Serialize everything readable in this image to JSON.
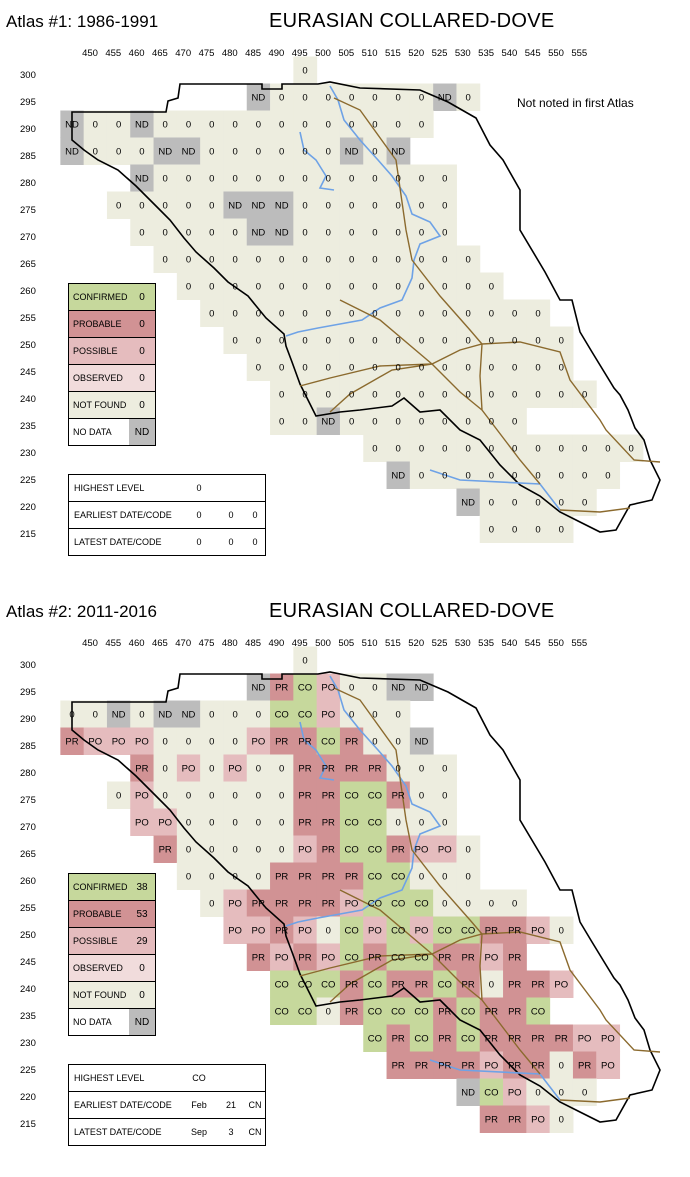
{
  "colors": {
    "CO": "#c6d89c",
    "PR": "#d19294",
    "PO": "#e5bcbe",
    "OB": "#f1dcdc",
    "NF": "#ededdf",
    "ND": "#bcbcbc",
    "outline": "#000000",
    "river": "#6ea2e6",
    "road": "#8b6a2e"
  },
  "x_axis": [
    "450",
    "455",
    "460",
    "465",
    "470",
    "475",
    "480",
    "485",
    "490",
    "495",
    "500",
    "505",
    "510",
    "515",
    "520",
    "525",
    "530",
    "535",
    "540",
    "545",
    "550",
    "555"
  ],
  "y_axis": [
    "300",
    "295",
    "290",
    "285",
    "280",
    "275",
    "270",
    "265",
    "260",
    "255",
    "250",
    "245",
    "240",
    "235",
    "230",
    "225",
    "220",
    "215"
  ],
  "panels": [
    {
      "atlas_label": "Atlas #1: 1986-1991",
      "title": "EURASIAN COLLARED-DOVE",
      "note": "Not noted in first Atlas",
      "legend": [
        {
          "label": "CONFIRMED",
          "value": "0",
          "code": "CO"
        },
        {
          "label": "PROBABLE",
          "value": "0",
          "code": "PR"
        },
        {
          "label": "POSSIBLE",
          "value": "0",
          "code": "PO"
        },
        {
          "label": "OBSERVED",
          "value": "0",
          "code": "OB"
        },
        {
          "label": "NOT FOUND",
          "value": "0",
          "code": "NF"
        },
        {
          "label": "NO DATA",
          "value": "ND",
          "code": "ND"
        }
      ],
      "summary": [
        {
          "label": "HIGHEST LEVEL",
          "v1": "0",
          "v2": "",
          "v3": ""
        },
        {
          "label": "EARLIEST DATE/CODE",
          "v1": "0",
          "v2": "0",
          "v3": "0"
        },
        {
          "label": "LATEST DATE/CODE",
          "v1": "0",
          "v2": "0",
          "v3": "0"
        }
      ],
      "rows": [
        "---------NF------------",
        "--------NDNFNFNFNFNFNFNFNDNF--------",
        "NDNFNFNDNFNFNFNFNFNFNFNFNFNFNFNF------",
        "NDNFNFNFNDNDNFNFNFNFNFNFNDNFND-------",
        "---NDNFNFNFNFNFNFNFNFNFNFNFNFNF------",
        "--NFNFNFNFNFNDNDNDNFNFNFNFNFNFNF------",
        "---NFNFNFNFNFNDNDNFNFNFNFNFNFNF-----",
        "----NFNFNFNFNFNFNFNFNFNFNFNFNFNF-----",
        "-----NFNFNFNFNFNFNFNFNFNFNFNFNFNF----",
        "------NFNFNFNFNFNFNFNFNFNFNFNFNFNFNF---",
        "-------NFNFNFNFNFNFNFNFNFNFNFNFNFNFNF--",
        "--------NFNFNFNFNFNFNFNFNFNFNFNFNFNF--",
        "---------NFNFNFNFNFNFNFNFNFNFNFNFNFNF--",
        "---------NFNFND-----NFNFNFNFNFNFNFNF-",
        "-------------NFNFNFNFNFNFNFNFNFNFNFNF",
        "--------------NDNFNFNFNFNFNFNFNFNF",
        "-----------------NDNFNFNFNFNF-",
        "------------------NFNFNFNF--"
      ]
    },
    {
      "atlas_label": "Atlas #2: 2011-2016",
      "title": "EURASIAN COLLARED-DOVE",
      "note": "",
      "legend": [
        {
          "label": "CONFIRMED",
          "value": "38",
          "code": "CO"
        },
        {
          "label": "PROBABLE",
          "value": "53",
          "code": "PR"
        },
        {
          "label": "POSSIBLE",
          "value": "29",
          "code": "PO"
        },
        {
          "label": "OBSERVED",
          "value": "0",
          "code": "OB"
        },
        {
          "label": "NOT FOUND",
          "value": "0",
          "code": "NF"
        },
        {
          "label": "NO DATA",
          "value": "ND",
          "code": "ND"
        }
      ],
      "summary": [
        {
          "label": "HIGHEST LEVEL",
          "v1": "CO",
          "v2": "",
          "v3": ""
        },
        {
          "label": "EARLIEST DATE/CODE",
          "v1": "Feb",
          "v2": "21",
          "v3": "CN"
        },
        {
          "label": "LATEST DATE/CODE",
          "v1": "Sep",
          "v2": "3",
          "v3": "CN"
        }
      ],
      "rows": [
        "---------NF------------",
        "--------NDPRCOPONFNFNDND--------",
        "NFNFNDNFNDNDNFNFNFCOCOPONFNFNF-------",
        "PRPOPOPONFNFNFNFPOPRPRCOPRNFNFND------",
        "---PRNFPONFPONFNFPRPRPRPRNFNFNF------",
        "--NFPONFNFNFNFNFNFPRPRCOCOPRNFNF------",
        "---POPONFNFNFNFNFPRPRCOCONFNFNF-----",
        "----PRNFNFNFNFNFPOPRCOCOPRPOPONF-----",
        "-----NFNFNFNFPRPRPRPRCOCONFNFNF----",
        "------NFPOPRPRPRPRPOCOCOCONFNFNFNF---",
        "-------POPOPRPONFCOPOCOPOCOCOPRPRPONF--",
        "--------PRPOPRPOCOPRCOCOPRPRPOPR--",
        "---------COCOCOPRCOPRPRCOPRNFPRPRPO--",
        "---------COCONF-----PRCOCOCOPRCOPRPRCO-",
        "-------------COPRCOPRCOPRPRPRPRPOPO",
        "--------------PRPRPRPRPOPRPRNFPRPO",
        "-----------------NDCOPONFNFNF-",
        "------------------PRPRPONF--"
      ]
    }
  ]
}
